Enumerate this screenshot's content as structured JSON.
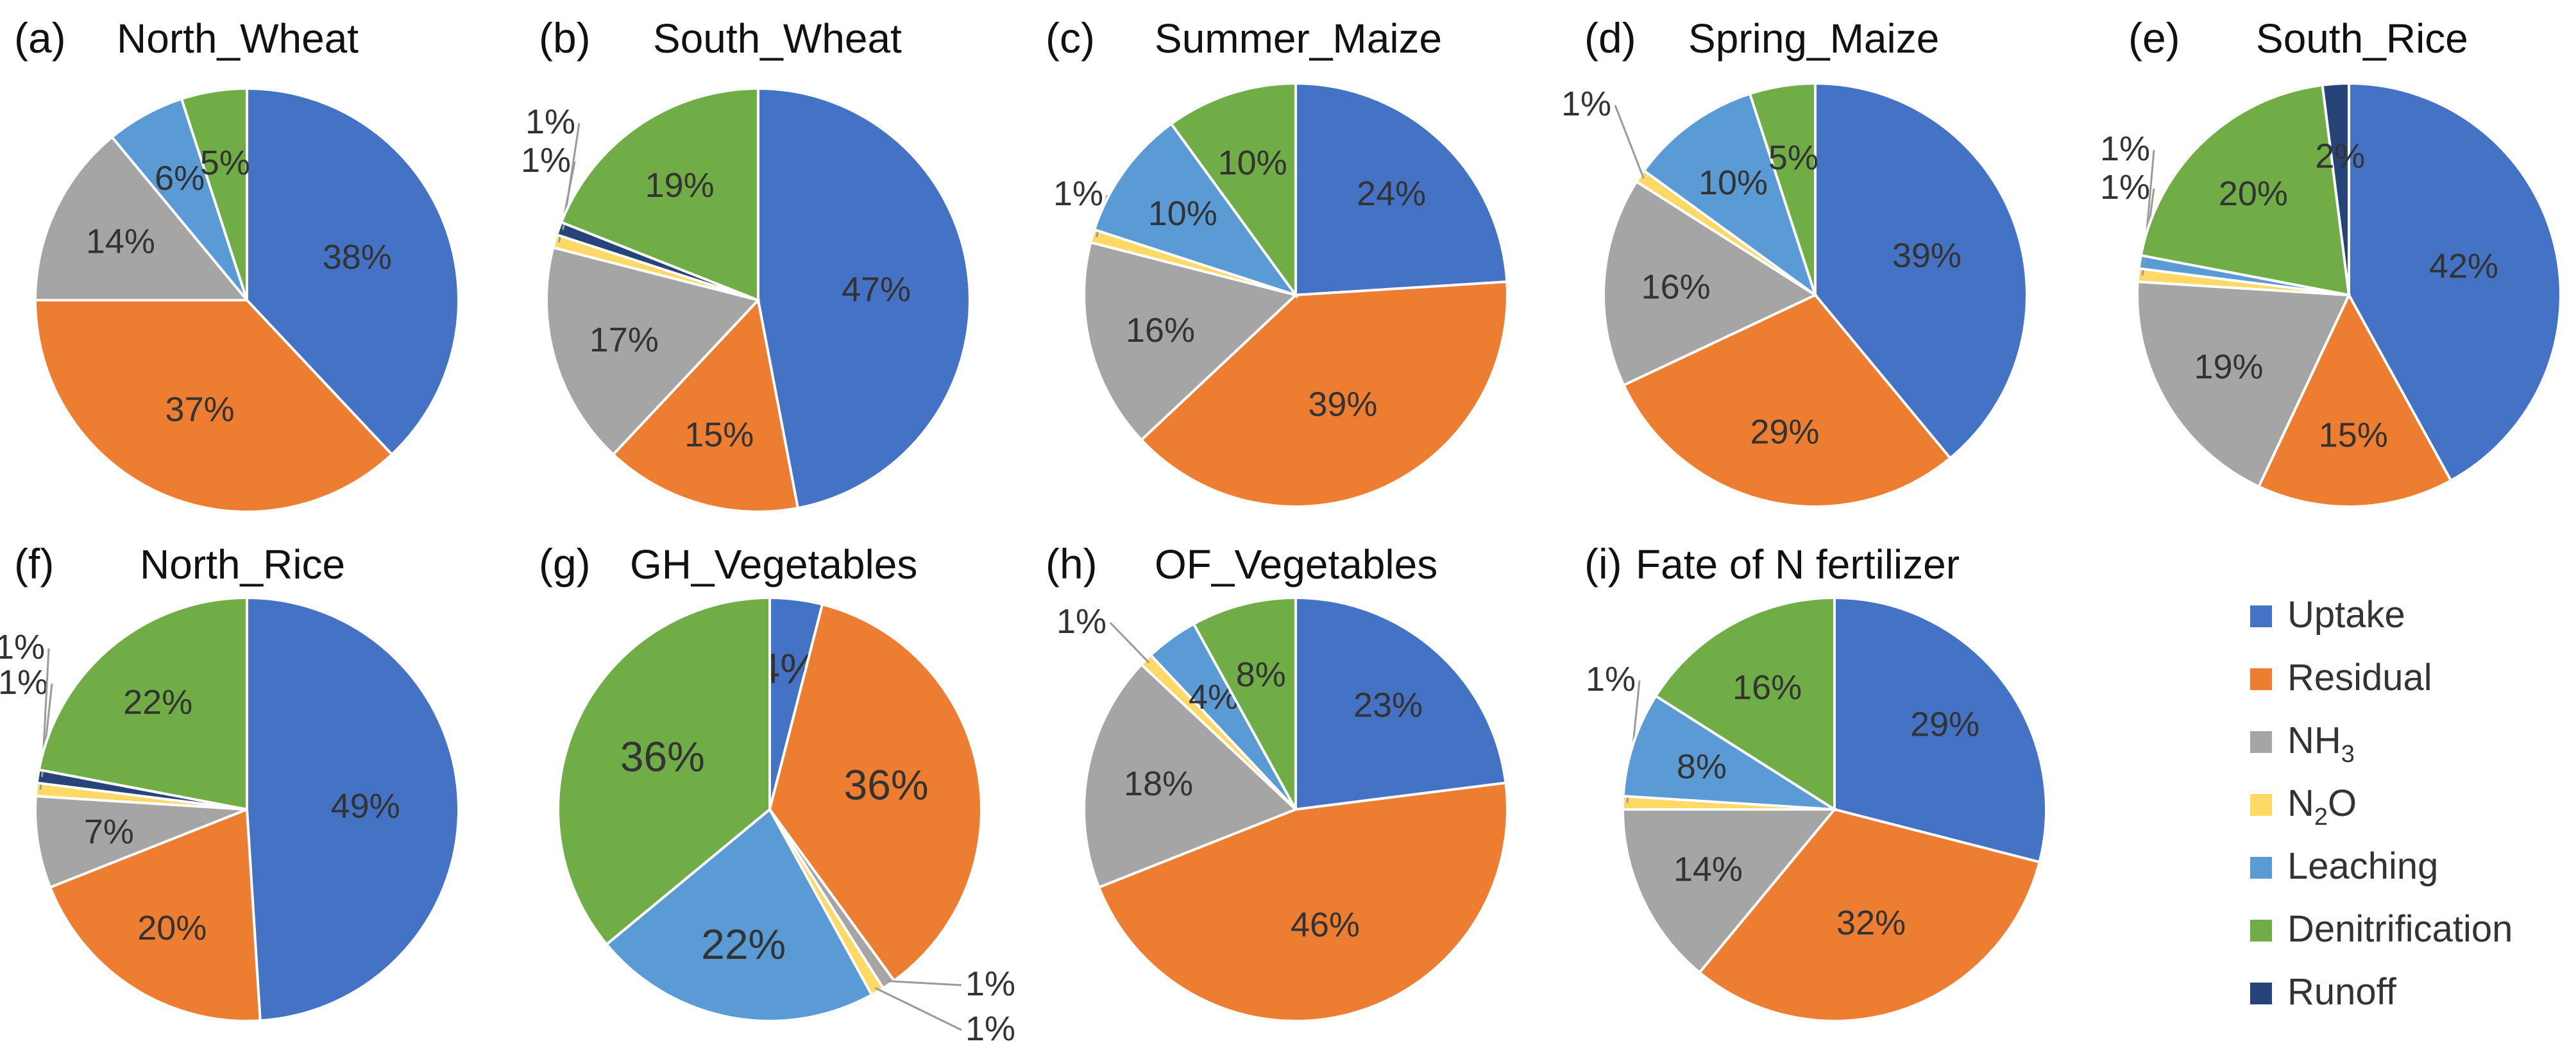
{
  "chart_data": [
    {
      "type": "pie",
      "panel": "(a)",
      "title": "North_Wheat",
      "slices": [
        {
          "category": "Uptake",
          "value": 38,
          "label": "38%"
        },
        {
          "category": "Residual",
          "value": 37,
          "label": "37%"
        },
        {
          "category": "NH3",
          "value": 14,
          "label": "14%"
        },
        {
          "category": "Leaching",
          "value": 6,
          "label": "6%"
        },
        {
          "category": "Denitrification",
          "value": 5,
          "label": "5%"
        }
      ]
    },
    {
      "type": "pie",
      "panel": "(b)",
      "title": "South_Wheat",
      "slices": [
        {
          "category": "Uptake",
          "value": 47,
          "label": "47%"
        },
        {
          "category": "Residual",
          "value": 15,
          "label": "15%"
        },
        {
          "category": "NH3",
          "value": 17,
          "label": "17%"
        },
        {
          "category": "N2O",
          "value": 1,
          "label": "1%"
        },
        {
          "category": "Runoff",
          "value": 1,
          "label": "1%"
        },
        {
          "category": "Denitrification",
          "value": 19,
          "label": "19%"
        }
      ]
    },
    {
      "type": "pie",
      "panel": "(c)",
      "title": "Summer_Maize",
      "slices": [
        {
          "category": "Uptake",
          "value": 24,
          "label": "24%"
        },
        {
          "category": "Residual",
          "value": 39,
          "label": "39%"
        },
        {
          "category": "NH3",
          "value": 16,
          "label": "16%"
        },
        {
          "category": "N2O",
          "value": 1,
          "label": "1%"
        },
        {
          "category": "Leaching",
          "value": 10,
          "label": "10%"
        },
        {
          "category": "Denitrification",
          "value": 10,
          "label": "10%"
        }
      ]
    },
    {
      "type": "pie",
      "panel": "(d)",
      "title": "Spring_Maize",
      "slices": [
        {
          "category": "Uptake",
          "value": 39,
          "label": "39%"
        },
        {
          "category": "Residual",
          "value": 29,
          "label": "29%"
        },
        {
          "category": "NH3",
          "value": 16,
          "label": "16%"
        },
        {
          "category": "N2O",
          "value": 1,
          "label": "1%"
        },
        {
          "category": "Leaching",
          "value": 10,
          "label": "10%"
        },
        {
          "category": "Denitrification",
          "value": 5,
          "label": "5%"
        }
      ]
    },
    {
      "type": "pie",
      "panel": "(e)",
      "title": "South_Rice",
      "slices": [
        {
          "category": "Uptake",
          "value": 42,
          "label": "42%"
        },
        {
          "category": "Residual",
          "value": 15,
          "label": "15%"
        },
        {
          "category": "NH3",
          "value": 19,
          "label": "19%"
        },
        {
          "category": "N2O",
          "value": 1,
          "label": "1%"
        },
        {
          "category": "Leaching",
          "value": 1,
          "label": "1%"
        },
        {
          "category": "Denitrification",
          "value": 20,
          "label": "20%"
        },
        {
          "category": "Runoff",
          "value": 2,
          "label": "2%"
        }
      ]
    },
    {
      "type": "pie",
      "panel": "(f)",
      "title": "North_Rice",
      "slices": [
        {
          "category": "Uptake",
          "value": 49,
          "label": "49%"
        },
        {
          "category": "Residual",
          "value": 20,
          "label": "20%"
        },
        {
          "category": "NH3",
          "value": 7,
          "label": "7%"
        },
        {
          "category": "N2O",
          "value": 1,
          "label": "1%"
        },
        {
          "category": "Runoff",
          "value": 1,
          "label": "1%"
        },
        {
          "category": "Denitrification",
          "value": 22,
          "label": "22%"
        }
      ]
    },
    {
      "type": "pie",
      "panel": "(g)",
      "title": "GH_Vegetables",
      "slices": [
        {
          "category": "Uptake",
          "value": 4,
          "label": "4%"
        },
        {
          "category": "Residual",
          "value": 36,
          "label": "36%"
        },
        {
          "category": "NH3",
          "value": 1,
          "label": "1%"
        },
        {
          "category": "N2O",
          "value": 1,
          "label": "1%"
        },
        {
          "category": "Leaching",
          "value": 22,
          "label": "22%"
        },
        {
          "category": "Denitrification",
          "value": 36,
          "label": "36%"
        }
      ]
    },
    {
      "type": "pie",
      "panel": "(h)",
      "title": "OF_Vegetables",
      "slices": [
        {
          "category": "Uptake",
          "value": 23,
          "label": "23%"
        },
        {
          "category": "Residual",
          "value": 46,
          "label": "46%"
        },
        {
          "category": "NH3",
          "value": 18,
          "label": "18%"
        },
        {
          "category": "N2O",
          "value": 1,
          "label": "1%"
        },
        {
          "category": "Leaching",
          "value": 4,
          "label": "4%"
        },
        {
          "category": "Denitrification",
          "value": 8,
          "label": "8%"
        }
      ]
    },
    {
      "type": "pie",
      "panel": "(i)",
      "title": "Fate of N fertilizer",
      "slices": [
        {
          "category": "Uptake",
          "value": 29,
          "label": "29%"
        },
        {
          "category": "Residual",
          "value": 32,
          "label": "32%"
        },
        {
          "category": "NH3",
          "value": 14,
          "label": "14%"
        },
        {
          "category": "N2O",
          "value": 1,
          "label": "1%"
        },
        {
          "category": "Leaching",
          "value": 8,
          "label": "8%"
        },
        {
          "category": "Denitrification",
          "value": 16,
          "label": "16%"
        }
      ]
    }
  ],
  "legend": {
    "items": [
      {
        "key": "Uptake",
        "label": "Uptake",
        "base": "Uptake",
        "sub": ""
      },
      {
        "key": "Residual",
        "label": "Residual",
        "base": "Residual",
        "sub": ""
      },
      {
        "key": "NH3",
        "label": "NH3",
        "base": "NH",
        "sub": "3"
      },
      {
        "key": "N2O",
        "label": "N2O",
        "base": "N",
        "sub": "2",
        "after": "O"
      },
      {
        "key": "Leaching",
        "label": "Leaching",
        "base": "Leaching",
        "sub": ""
      },
      {
        "key": "Denitrification",
        "label": "Denitrification",
        "base": "Denitrification",
        "sub": ""
      },
      {
        "key": "Runoff",
        "label": "Runoff",
        "base": "Runoff",
        "sub": ""
      }
    ]
  },
  "colors": {
    "Uptake": "#4472c4",
    "Residual": "#ed7d31",
    "NH3": "#a5a5a5",
    "N2O": "#ffd966",
    "Leaching": "#5b9bd5",
    "Denitrification": "#70ad47",
    "Runoff": "#264478"
  }
}
